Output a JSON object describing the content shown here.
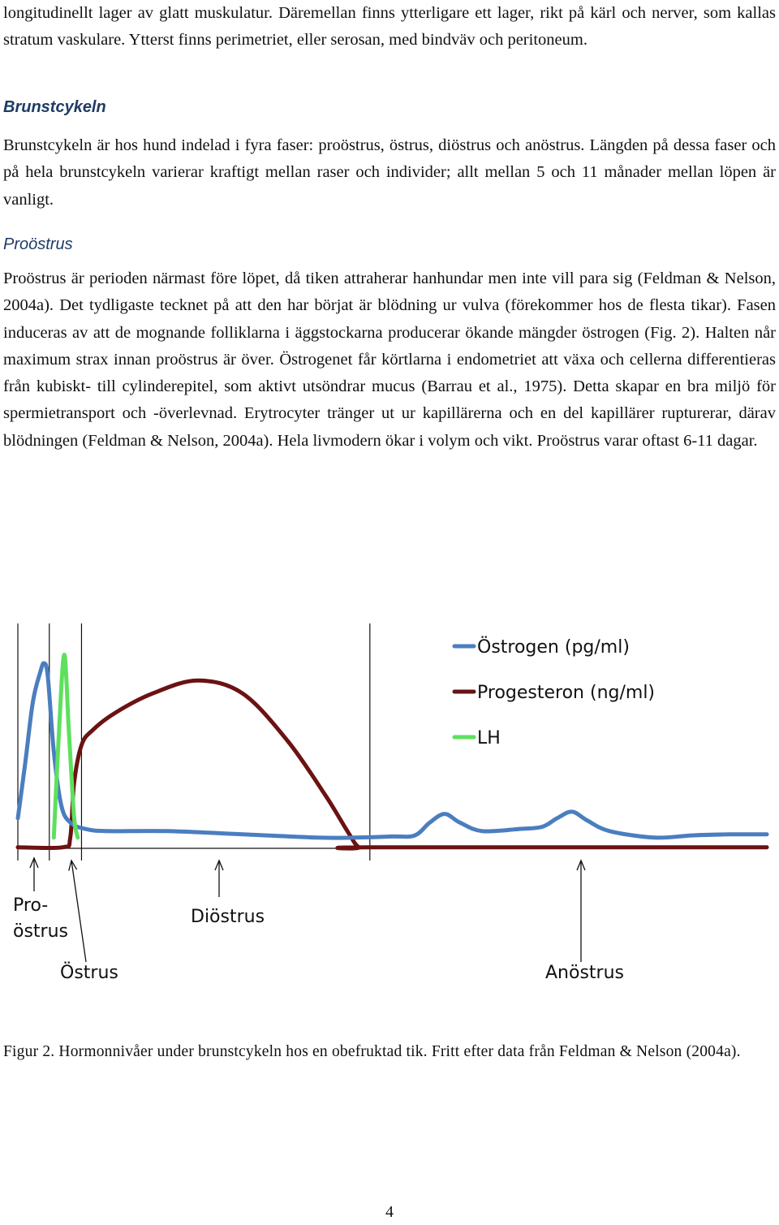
{
  "intro_text": "longitudinellt lager av glatt muskulatur. Däremellan finns ytterligare ett lager, rikt på kärl och nerver, som kallas stratum vaskulare. Ytterst finns perimetriet, eller serosan, med bindväv och peritoneum.",
  "section": {
    "heading": "Brunstcykeln",
    "paragraph": "Brunstcykeln är hos hund indelad i fyra faser: proöstrus, östrus, diöstrus och anöstrus. Längden på dessa faser och på hela brunstcykeln varierar kraftigt mellan raser och individer; allt mellan 5 och 11 månader mellan löpen är vanligt."
  },
  "subsection": {
    "heading": "Proöstrus",
    "paragraph": "Proöstrus är perioden närmast före löpet, då tiken attraherar hanhundar men inte vill para sig (Feldman & Nelson, 2004a). Det tydligaste tecknet på att den har börjat är blödning ur vulva (förekommer hos de flesta tikar). Fasen induceras av att de mognande folliklarna i äggstockarna producerar ökande mängder östrogen (Fig. 2). Halten når maximum strax innan proöstrus är över. Östrogenet får körtlarna i endometriet att växa och cellerna differentieras från kubiskt- till cylinderepitel, som aktivt utsöndrar mucus (Barrau et al., 1975). Detta skapar en bra miljö för spermietransport och -överlevnad. Erytrocyter tränger ut ur kapillärerna och en del kapillärer rupturerar, därav blödningen (Feldman & Nelson, 2004a). Hela livmodern ökar i volym och vikt. Proöstrus varar oftast 6-11 dagar."
  },
  "figure": {
    "phase_labels": {
      "proostrus_line1": "Pro-",
      "proostrus_line2": "östrus",
      "ostrus": "Östrus",
      "diostrus": "Diöstrus",
      "anostrus": "Anöstrus"
    },
    "caption": "Figur 2. Hormonnivåer under brunstcykeln hos en obefruktad tik. Fritt efter data från Feldman & Nelson (2004a)."
  },
  "chart_data": {
    "type": "line",
    "title": "",
    "xlabel": "",
    "ylabel": "",
    "x_range": [
      0,
      100
    ],
    "y_range": [
      0,
      100
    ],
    "x_ticks": false,
    "y_ticks": false,
    "grid": false,
    "legend_position": "top-right",
    "phase_boundaries": [
      0,
      4.2,
      8.5,
      47
    ],
    "series": [
      {
        "name": "Östrogen (pg/ml)",
        "color": "#4a7ebf",
        "x": [
          0,
          1,
          2,
          3,
          3.5,
          4,
          4.8,
          5.8,
          7,
          9,
          12,
          20,
          30,
          40,
          45,
          50,
          53,
          55,
          57,
          59,
          62,
          67,
          70,
          72,
          74,
          76,
          79,
          85,
          90,
          95,
          100
        ],
        "y": [
          14,
          40,
          68,
          82,
          86,
          80,
          45,
          20,
          12,
          9,
          8,
          8,
          6.5,
          5,
          5,
          5.5,
          6,
          12,
          16,
          12,
          8,
          9,
          10,
          14,
          17,
          13,
          8,
          5,
          6,
          6.5,
          6.5
        ]
      },
      {
        "name": "Progesteron (ng/ml)",
        "color": "#6b1212",
        "x": [
          0,
          6,
          7,
          7.5,
          8.5,
          10,
          13,
          18,
          24,
          30,
          36,
          41,
          44,
          45.5,
          47,
          100
        ],
        "y": [
          0.5,
          0.5,
          5,
          30,
          48,
          55,
          63,
          72,
          78,
          72,
          50,
          25,
          8,
          0.5,
          0.5,
          0.5
        ]
      },
      {
        "name": "LH",
        "color": "#5ee05e",
        "x": [
          4.8,
          5.5,
          6.2,
          6.8,
          7.5,
          8.0
        ],
        "y": [
          5,
          55,
          90,
          55,
          15,
          5
        ]
      }
    ]
  },
  "page_number": "4"
}
